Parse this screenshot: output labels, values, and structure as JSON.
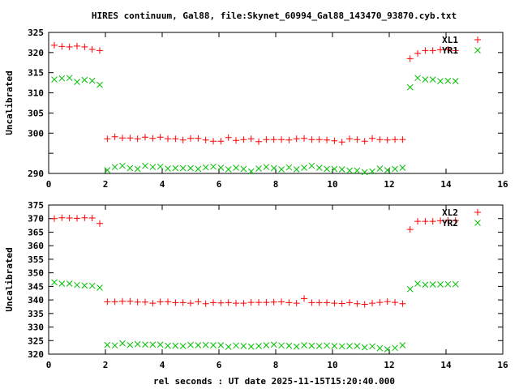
{
  "chart_data": [
    {
      "type": "scatter",
      "title": "HIRES continuum, Gal88, file:Skynet_60994_Gal88_143470_93870.cyb.txt",
      "xlabel": "",
      "ylabel": "Uncalibrated",
      "xlim": [
        0,
        16
      ],
      "ylim": [
        290,
        325
      ],
      "xticks": [
        0,
        2,
        4,
        6,
        8,
        10,
        12,
        14,
        16
      ],
      "yticks": [
        290,
        295,
        300,
        305,
        310,
        315,
        320,
        325
      ],
      "ytick_labels": [
        "290",
        "",
        "300",
        "305",
        "310",
        "315",
        "320",
        "325"
      ],
      "legend": "top-right",
      "series": [
        {
          "name": "XL1",
          "marker": "plus",
          "color": "#ff0000",
          "y": [
            321.8,
            321.5,
            321.4,
            321.6,
            321.4,
            320.8,
            320.5,
            298.6,
            299.1,
            298.8,
            298.8,
            298.6,
            299,
            298.7,
            299,
            298.6,
            298.6,
            298.3,
            298.7,
            298.7,
            298.3,
            298,
            298,
            298.9,
            298.2,
            298.4,
            298.6,
            297.9,
            298.4,
            298.4,
            298.4,
            298.3,
            298.6,
            298.7,
            298.4,
            298.4,
            298.3,
            298.1,
            297.8,
            298.6,
            298.4,
            298,
            298.7,
            298.4,
            298.3,
            298.4,
            298.4,
            318.5,
            319.8,
            320.5,
            320.5,
            320.7,
            320.8,
            320.5
          ]
        },
        {
          "name": "YR1",
          "marker": "cross",
          "color": "#00c000",
          "y": [
            313.3,
            313.6,
            313.7,
            312.7,
            313.2,
            313,
            312,
            290.8,
            291.6,
            291.9,
            291.3,
            291.1,
            291.9,
            291.6,
            291.7,
            291.2,
            291.3,
            291.3,
            291.3,
            291.1,
            291.5,
            291.7,
            291.4,
            291,
            291.4,
            291.1,
            290.5,
            291.2,
            291.6,
            291.3,
            291,
            291.5,
            291,
            291.4,
            291.9,
            291.4,
            291.1,
            291.1,
            291,
            290.7,
            290.7,
            290.3,
            290.5,
            291.2,
            290.8,
            291.1,
            291.4,
            311.4,
            313.7,
            313.3,
            313.3,
            312.9,
            313,
            312.9
          ]
        }
      ]
    },
    {
      "type": "scatter",
      "xlabel": "rel seconds : UT date 2025-11-15T15:20:40.000",
      "ylabel": "Uncalibrated",
      "xlim": [
        0,
        16
      ],
      "ylim": [
        320,
        375
      ],
      "xticks": [
        0,
        2,
        4,
        6,
        8,
        10,
        12,
        14,
        16
      ],
      "yticks": [
        320,
        325,
        330,
        335,
        340,
        345,
        350,
        355,
        360,
        365,
        370,
        375
      ],
      "legend": "top-right",
      "series": [
        {
          "name": "XL2",
          "marker": "plus",
          "color": "#ff0000",
          "y": [
            370,
            370.3,
            370.2,
            370.1,
            370.3,
            370.2,
            368.2,
            339.3,
            339.3,
            339.5,
            339.5,
            339.2,
            339.2,
            338.8,
            339.3,
            339.3,
            339,
            339,
            338.8,
            339.3,
            338.6,
            339,
            338.9,
            339,
            338.8,
            338.8,
            339.1,
            339.1,
            339.1,
            339.2,
            339.3,
            339,
            338.8,
            340.5,
            339,
            339,
            339,
            338.8,
            338.7,
            339,
            338.6,
            338.4,
            338.8,
            339.1,
            339.4,
            339.1,
            338.6,
            366,
            369,
            369,
            369,
            369.2,
            369.4,
            369.3
          ]
        },
        {
          "name": "YR2",
          "marker": "cross",
          "color": "#00c000",
          "y": [
            346.5,
            346,
            346,
            345.5,
            345.3,
            345.2,
            344.5,
            323.4,
            323.2,
            324,
            323.4,
            323.7,
            323.5,
            323.5,
            323.5,
            323.1,
            323.1,
            323,
            323.4,
            323.3,
            323.4,
            323.3,
            323.3,
            322.7,
            323.2,
            323,
            322.8,
            323,
            323.3,
            323.5,
            323.2,
            323.1,
            322.8,
            323.3,
            323.1,
            323,
            323.2,
            323,
            322.9,
            323,
            323,
            322.5,
            322.9,
            322.2,
            321.8,
            322.3,
            323.3,
            344,
            346,
            345.6,
            345.7,
            345.7,
            345.8,
            345.8
          ]
        }
      ]
    }
  ],
  "x_start": 0.2,
  "x_step": 0.2667
}
